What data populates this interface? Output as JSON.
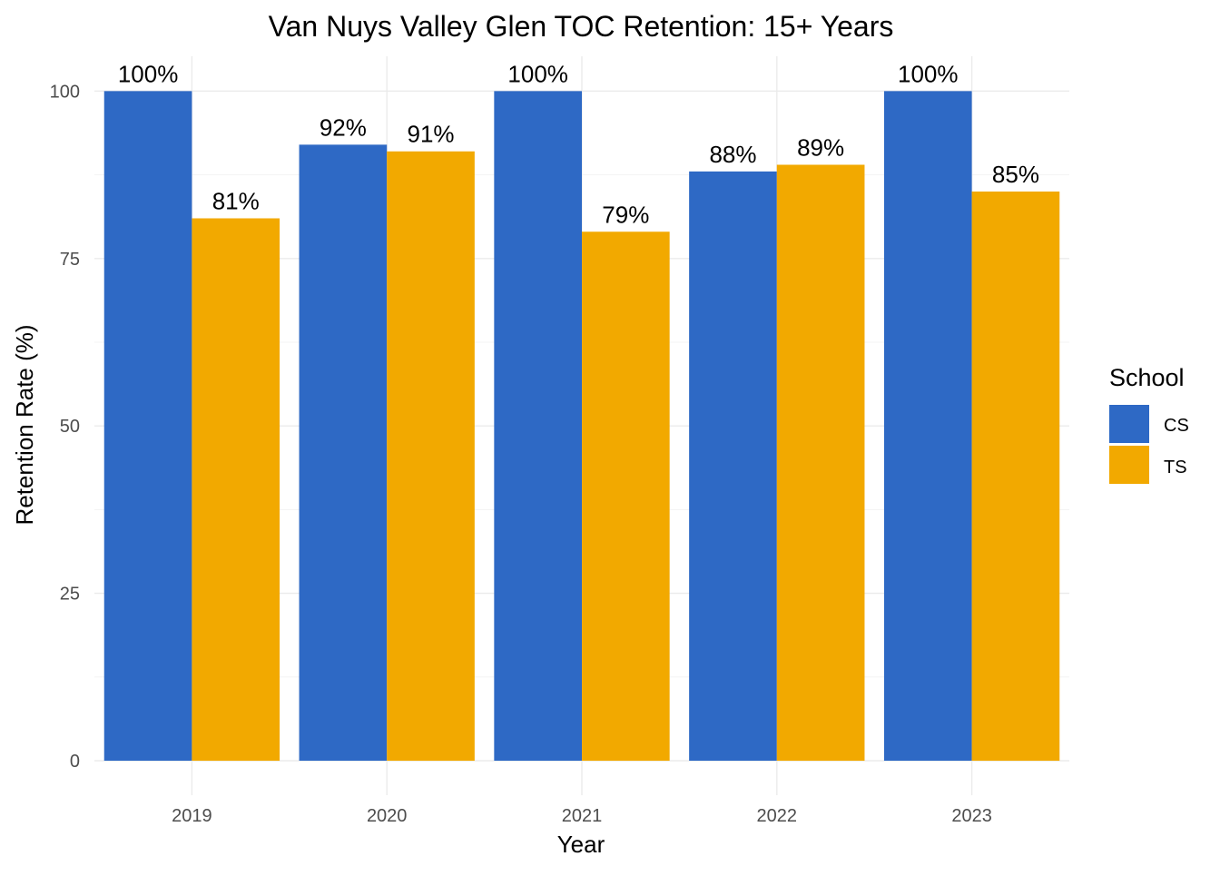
{
  "chart_data": {
    "type": "bar",
    "title": "Van Nuys Valley Glen TOC Retention: 15+ Years",
    "xlabel": "Year",
    "ylabel": "Retention Rate (%)",
    "categories": [
      "2019",
      "2020",
      "2021",
      "2022",
      "2023"
    ],
    "series": [
      {
        "name": "CS",
        "color": "#2e69c5",
        "values": [
          100,
          92,
          100,
          88,
          100
        ],
        "labels": [
          "100%",
          "92%",
          "100%",
          "88%",
          "100%"
        ]
      },
      {
        "name": "TS",
        "color": "#f2a900",
        "values": [
          81,
          91,
          79,
          89,
          85
        ],
        "labels": [
          "81%",
          "91%",
          "79%",
          "89%",
          "85%"
        ]
      }
    ],
    "ylim": [
      0,
      100
    ],
    "yticks": [
      "0",
      "25",
      "50",
      "75",
      "100"
    ],
    "grid": true,
    "legend": {
      "title": "School",
      "position": "right"
    }
  }
}
